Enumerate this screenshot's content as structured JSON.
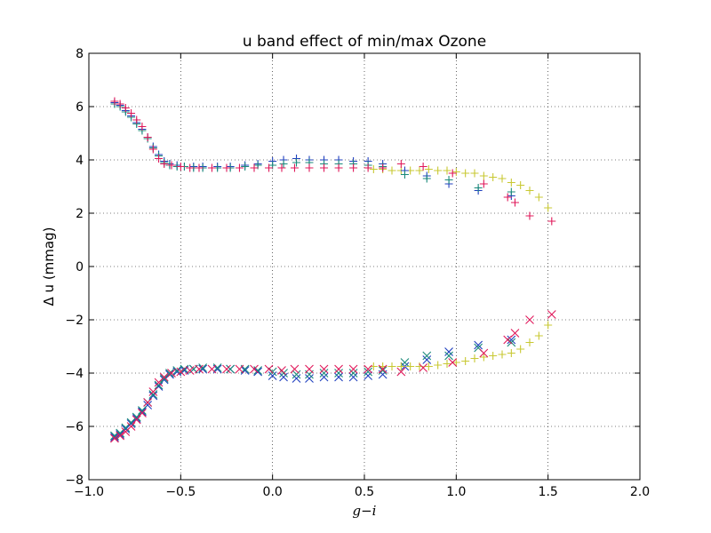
{
  "chart_data": {
    "type": "scatter",
    "title": "u band effect of min/max Ozone",
    "xlabel": "g−i",
    "ylabel": "Δ u (mmag)",
    "xlim": [
      -1.0,
      2.0
    ],
    "ylim": [
      -8,
      8
    ],
    "xticks": [
      -1.0,
      -0.5,
      0.0,
      0.5,
      1.0,
      1.5,
      2.0
    ],
    "xtick_labels": [
      "−1.0",
      "−0.5",
      "0.0",
      "0.5",
      "1.0",
      "1.5",
      "2.0"
    ],
    "yticks": [
      -8,
      -6,
      -4,
      -2,
      0,
      2,
      4,
      6,
      8
    ],
    "ytick_labels": [
      "−8",
      "−6",
      "−4",
      "−2",
      "0",
      "2",
      "4",
      "6",
      "8"
    ],
    "grid": "dotted",
    "legend": "none",
    "series": [
      {
        "color": "#1f3fbf",
        "marker": "x",
        "points": [
          [
            -0.86,
            -6.4
          ],
          [
            -0.83,
            -6.3
          ],
          [
            -0.8,
            -6.1
          ],
          [
            -0.77,
            -5.9
          ],
          [
            -0.74,
            -5.7
          ],
          [
            -0.71,
            -5.45
          ],
          [
            -0.68,
            -5.2
          ],
          [
            -0.65,
            -4.85
          ],
          [
            -0.62,
            -4.5
          ],
          [
            -0.59,
            -4.25
          ],
          [
            -0.56,
            -4.05
          ],
          [
            -0.52,
            -3.95
          ],
          [
            -0.48,
            -3.9
          ],
          [
            -0.43,
            -3.85
          ],
          [
            -0.38,
            -3.85
          ],
          [
            -0.3,
            -3.85
          ],
          [
            -0.23,
            -3.85
          ],
          [
            -0.15,
            -3.9
          ],
          [
            -0.08,
            -3.95
          ],
          [
            0.0,
            -4.1
          ],
          [
            0.06,
            -4.15
          ],
          [
            0.13,
            -4.2
          ],
          [
            0.2,
            -4.2
          ],
          [
            0.28,
            -4.15
          ],
          [
            0.36,
            -4.15
          ],
          [
            0.44,
            -4.15
          ],
          [
            0.52,
            -4.1
          ],
          [
            0.6,
            -4.05
          ],
          [
            0.72,
            -3.75
          ],
          [
            0.84,
            -3.5
          ],
          [
            0.96,
            -3.2
          ],
          [
            1.12,
            -2.95
          ],
          [
            1.3,
            -2.75
          ]
        ]
      },
      {
        "color": "#1a8a7a",
        "marker": "x",
        "points": [
          [
            -0.86,
            -6.35
          ],
          [
            -0.83,
            -6.25
          ],
          [
            -0.8,
            -6.05
          ],
          [
            -0.77,
            -5.85
          ],
          [
            -0.74,
            -5.65
          ],
          [
            -0.71,
            -5.4
          ],
          [
            -0.68,
            -5.1
          ],
          [
            -0.65,
            -4.8
          ],
          [
            -0.62,
            -4.45
          ],
          [
            -0.59,
            -4.2
          ],
          [
            -0.56,
            -4.0
          ],
          [
            -0.52,
            -3.9
          ],
          [
            -0.48,
            -3.85
          ],
          [
            -0.43,
            -3.85
          ],
          [
            -0.38,
            -3.8
          ],
          [
            -0.3,
            -3.8
          ],
          [
            -0.23,
            -3.85
          ],
          [
            -0.15,
            -3.85
          ],
          [
            -0.08,
            -3.9
          ],
          [
            0.0,
            -3.95
          ],
          [
            0.06,
            -4.0
          ],
          [
            0.13,
            -4.05
          ],
          [
            0.2,
            -4.05
          ],
          [
            0.28,
            -4.0
          ],
          [
            0.36,
            -4.0
          ],
          [
            0.44,
            -4.0
          ],
          [
            0.52,
            -3.95
          ],
          [
            0.6,
            -3.9
          ],
          [
            0.72,
            -3.6
          ],
          [
            0.84,
            -3.35
          ],
          [
            0.96,
            -3.35
          ],
          [
            1.12,
            -3.05
          ],
          [
            1.3,
            -2.85
          ]
        ]
      },
      {
        "color": "#c8c832",
        "marker": "+",
        "points": [
          [
            0.55,
            -3.75
          ],
          [
            0.6,
            -3.75
          ],
          [
            0.65,
            -3.75
          ],
          [
            0.7,
            -3.75
          ],
          [
            0.75,
            -3.75
          ],
          [
            0.8,
            -3.75
          ],
          [
            0.85,
            -3.75
          ],
          [
            0.9,
            -3.7
          ],
          [
            0.95,
            -3.65
          ],
          [
            1.0,
            -3.6
          ],
          [
            1.05,
            -3.55
          ],
          [
            1.1,
            -3.45
          ],
          [
            1.15,
            -3.4
          ],
          [
            1.2,
            -3.35
          ],
          [
            1.25,
            -3.3
          ],
          [
            1.3,
            -3.25
          ],
          [
            1.35,
            -3.1
          ],
          [
            1.4,
            -2.85
          ],
          [
            1.45,
            -2.6
          ],
          [
            1.5,
            -2.2
          ],
          [
            0.55,
            3.65
          ],
          [
            0.6,
            3.65
          ],
          [
            0.65,
            3.6
          ],
          [
            0.7,
            3.6
          ],
          [
            0.75,
            3.6
          ],
          [
            0.8,
            3.6
          ],
          [
            0.85,
            3.65
          ],
          [
            0.9,
            3.6
          ],
          [
            0.95,
            3.6
          ],
          [
            1.0,
            3.55
          ],
          [
            1.05,
            3.5
          ],
          [
            1.1,
            3.5
          ],
          [
            1.15,
            3.4
          ],
          [
            1.2,
            3.35
          ],
          [
            1.25,
            3.3
          ],
          [
            1.3,
            3.15
          ],
          [
            1.35,
            3.05
          ],
          [
            1.4,
            2.85
          ],
          [
            1.45,
            2.6
          ],
          [
            1.5,
            2.2
          ]
        ]
      },
      {
        "color": "#e0185a",
        "marker": "x",
        "points": [
          [
            -0.86,
            -6.45
          ],
          [
            -0.83,
            -6.35
          ],
          [
            -0.8,
            -6.2
          ],
          [
            -0.77,
            -6.0
          ],
          [
            -0.74,
            -5.75
          ],
          [
            -0.71,
            -5.5
          ],
          [
            -0.68,
            -5.1
          ],
          [
            -0.65,
            -4.7
          ],
          [
            -0.62,
            -4.35
          ],
          [
            -0.59,
            -4.15
          ],
          [
            -0.55,
            -4.0
          ],
          [
            -0.5,
            -3.95
          ],
          [
            -0.45,
            -3.9
          ],
          [
            -0.4,
            -3.85
          ],
          [
            -0.33,
            -3.85
          ],
          [
            -0.25,
            -3.85
          ],
          [
            -0.18,
            -3.85
          ],
          [
            -0.1,
            -3.85
          ],
          [
            -0.02,
            -3.85
          ],
          [
            0.05,
            -3.9
          ],
          [
            0.12,
            -3.85
          ],
          [
            0.2,
            -3.85
          ],
          [
            0.28,
            -3.85
          ],
          [
            0.36,
            -3.85
          ],
          [
            0.44,
            -3.85
          ],
          [
            0.52,
            -3.85
          ],
          [
            0.6,
            -3.85
          ],
          [
            0.7,
            -3.95
          ],
          [
            0.82,
            -3.8
          ],
          [
            0.98,
            -3.6
          ],
          [
            1.15,
            -3.25
          ],
          [
            1.28,
            -2.75
          ],
          [
            1.32,
            -2.5
          ],
          [
            1.4,
            -2.0
          ],
          [
            1.52,
            -1.8
          ]
        ]
      },
      {
        "color": "#1f3fbf",
        "marker": "+",
        "points": [
          [
            -0.86,
            6.15
          ],
          [
            -0.83,
            6.05
          ],
          [
            -0.8,
            5.85
          ],
          [
            -0.77,
            5.65
          ],
          [
            -0.74,
            5.4
          ],
          [
            -0.71,
            5.15
          ],
          [
            -0.68,
            4.85
          ],
          [
            -0.65,
            4.5
          ],
          [
            -0.62,
            4.2
          ],
          [
            -0.59,
            3.95
          ],
          [
            -0.56,
            3.85
          ],
          [
            -0.52,
            3.8
          ],
          [
            -0.48,
            3.75
          ],
          [
            -0.43,
            3.75
          ],
          [
            -0.38,
            3.75
          ],
          [
            -0.3,
            3.75
          ],
          [
            -0.23,
            3.75
          ],
          [
            -0.15,
            3.8
          ],
          [
            -0.08,
            3.85
          ],
          [
            0.0,
            3.95
          ],
          [
            0.06,
            4.0
          ],
          [
            0.13,
            4.05
          ],
          [
            0.2,
            4.0
          ],
          [
            0.28,
            4.0
          ],
          [
            0.36,
            4.0
          ],
          [
            0.44,
            3.95
          ],
          [
            0.52,
            3.95
          ],
          [
            0.6,
            3.85
          ],
          [
            0.72,
            3.6
          ],
          [
            0.84,
            3.4
          ],
          [
            0.96,
            3.1
          ],
          [
            1.12,
            2.85
          ],
          [
            1.3,
            2.65
          ]
        ]
      },
      {
        "color": "#1a8a7a",
        "marker": "+",
        "points": [
          [
            -0.86,
            6.1
          ],
          [
            -0.83,
            6.0
          ],
          [
            -0.8,
            5.8
          ],
          [
            -0.77,
            5.6
          ],
          [
            -0.74,
            5.35
          ],
          [
            -0.71,
            5.1
          ],
          [
            -0.68,
            4.8
          ],
          [
            -0.65,
            4.45
          ],
          [
            -0.62,
            4.15
          ],
          [
            -0.59,
            3.9
          ],
          [
            -0.56,
            3.8
          ],
          [
            -0.52,
            3.75
          ],
          [
            -0.48,
            3.75
          ],
          [
            -0.43,
            3.7
          ],
          [
            -0.38,
            3.7
          ],
          [
            -0.3,
            3.7
          ],
          [
            -0.23,
            3.7
          ],
          [
            -0.15,
            3.75
          ],
          [
            -0.08,
            3.8
          ],
          [
            0.0,
            3.8
          ],
          [
            0.06,
            3.85
          ],
          [
            0.13,
            3.9
          ],
          [
            0.2,
            3.9
          ],
          [
            0.28,
            3.85
          ],
          [
            0.36,
            3.85
          ],
          [
            0.44,
            3.85
          ],
          [
            0.52,
            3.8
          ],
          [
            0.6,
            3.75
          ],
          [
            0.72,
            3.45
          ],
          [
            0.84,
            3.3
          ],
          [
            0.96,
            3.25
          ],
          [
            1.12,
            2.95
          ],
          [
            1.3,
            2.8
          ]
        ]
      },
      {
        "color": "#e0185a",
        "marker": "+",
        "points": [
          [
            -0.86,
            6.2
          ],
          [
            -0.83,
            6.1
          ],
          [
            -0.8,
            5.95
          ],
          [
            -0.77,
            5.75
          ],
          [
            -0.74,
            5.5
          ],
          [
            -0.71,
            5.25
          ],
          [
            -0.68,
            4.85
          ],
          [
            -0.65,
            4.4
          ],
          [
            -0.62,
            4.05
          ],
          [
            -0.59,
            3.85
          ],
          [
            -0.55,
            3.8
          ],
          [
            -0.5,
            3.75
          ],
          [
            -0.45,
            3.7
          ],
          [
            -0.4,
            3.7
          ],
          [
            -0.33,
            3.7
          ],
          [
            -0.25,
            3.7
          ],
          [
            -0.18,
            3.7
          ],
          [
            -0.1,
            3.7
          ],
          [
            -0.02,
            3.7
          ],
          [
            0.05,
            3.7
          ],
          [
            0.12,
            3.7
          ],
          [
            0.2,
            3.7
          ],
          [
            0.28,
            3.7
          ],
          [
            0.36,
            3.7
          ],
          [
            0.44,
            3.7
          ],
          [
            0.52,
            3.7
          ],
          [
            0.6,
            3.7
          ],
          [
            0.7,
            3.85
          ],
          [
            0.82,
            3.75
          ],
          [
            0.98,
            3.5
          ],
          [
            1.15,
            3.1
          ],
          [
            1.28,
            2.6
          ],
          [
            1.32,
            2.4
          ],
          [
            1.4,
            1.9
          ],
          [
            1.52,
            1.7
          ]
        ]
      }
    ]
  }
}
